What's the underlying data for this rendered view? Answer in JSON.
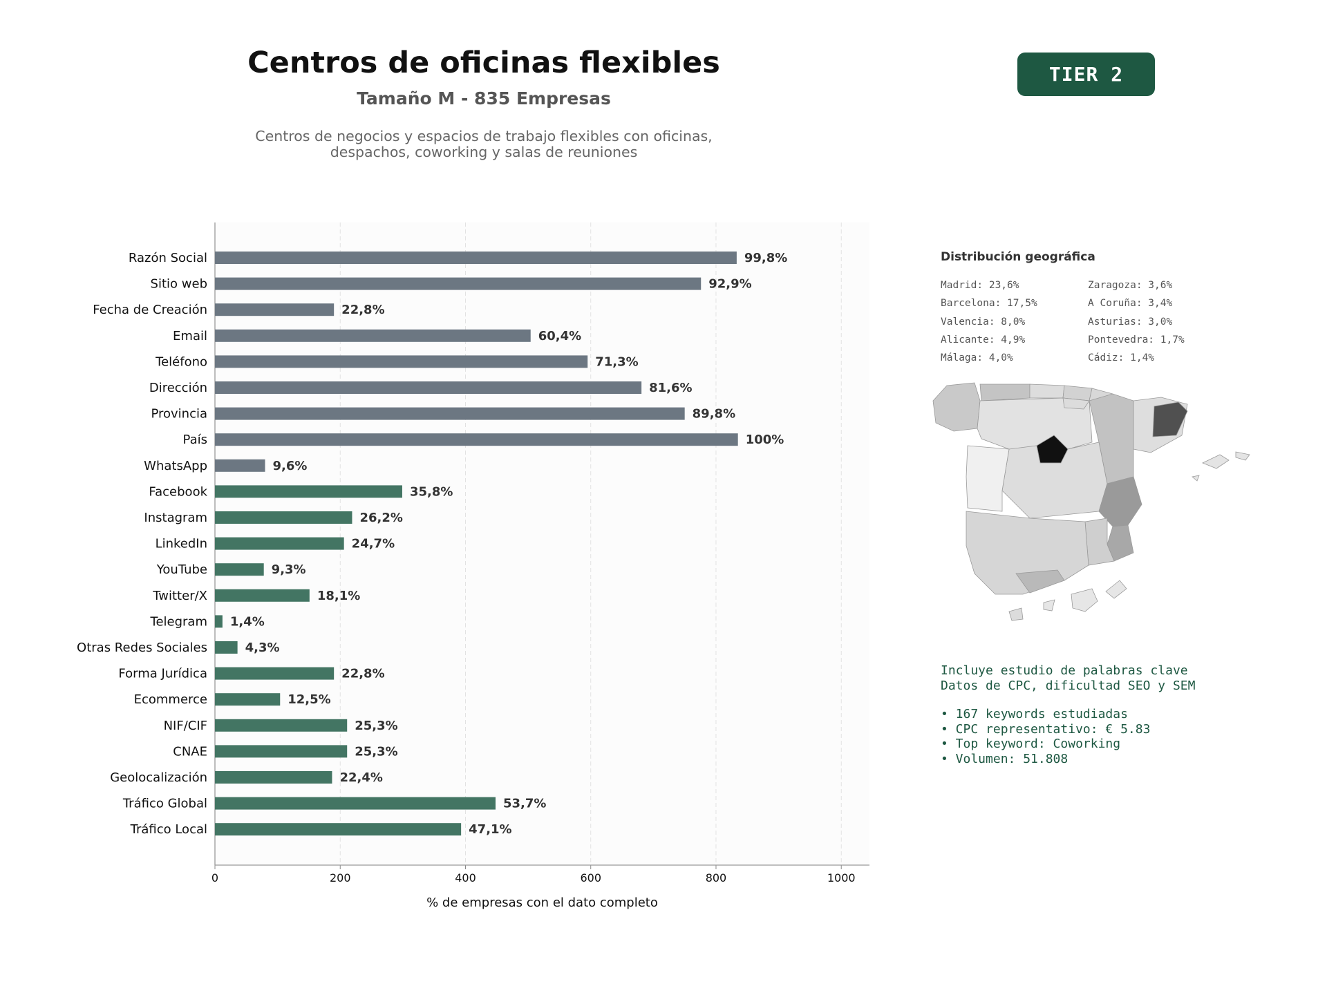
{
  "header": {
    "title": "Centros de oficinas flexibles",
    "subtitle": "Tamaño M - 835 Empresas",
    "description_line1": "Centros de negocios y espacios de trabajo flexibles con oficinas,",
    "description_line2": "despachos, coworking y salas de reuniones",
    "badge": "TIER 2"
  },
  "colors": {
    "gray_bar": "#6c7782",
    "green_bar": "#437563",
    "badge": "#1e5842",
    "accent_text": "#1e5842"
  },
  "chart_data": {
    "type": "bar",
    "orientation": "horizontal",
    "xlabel": "% de empresas con el dato completo",
    "ylabel": "",
    "xlim": [
      0,
      1045
    ],
    "xticks": [
      0,
      200,
      400,
      600,
      800,
      1000
    ],
    "grid": "vertical dashed",
    "categories": [
      "Razón Social",
      "Sitio web",
      "Fecha de Creación",
      "Email",
      "Teléfono",
      "Dirección",
      "Provincia",
      "País",
      "WhatsApp",
      "Facebook",
      "Instagram",
      "LinkedIn",
      "YouTube",
      "Twitter/X",
      "Telegram",
      "Otras Redes Sociales",
      "Forma Jurídica",
      "Ecommerce",
      "NIF/CIF",
      "CNAE",
      "Geolocalización",
      "Tráfico Global",
      "Tráfico Local"
    ],
    "values": [
      833,
      776,
      190,
      504,
      595,
      681,
      750,
      835,
      80,
      299,
      219,
      206,
      78,
      151,
      12,
      36,
      190,
      104,
      211,
      211,
      187,
      448,
      393
    ],
    "labels": [
      "99,8%",
      "92,9%",
      "22,8%",
      "60,4%",
      "71,3%",
      "81,6%",
      "89,8%",
      "100%",
      "9,6%",
      "35,8%",
      "26,2%",
      "24,7%",
      "9,3%",
      "18,1%",
      "1,4%",
      "4,3%",
      "22,8%",
      "12,5%",
      "25,3%",
      "25,3%",
      "22,4%",
      "53,7%",
      "47,1%"
    ],
    "bar_colors": [
      "gray",
      "gray",
      "gray",
      "gray",
      "gray",
      "gray",
      "gray",
      "gray",
      "gray",
      "green",
      "green",
      "green",
      "green",
      "green",
      "green",
      "green",
      "green",
      "green",
      "green",
      "green",
      "green",
      "green",
      "green"
    ]
  },
  "geo": {
    "title": "Distribución geográfica",
    "col1": [
      "Madrid: 23,6%",
      "Barcelona: 17,5%",
      "Valencia: 8,0%",
      "Alicante: 4,9%",
      "Málaga: 4,0%"
    ],
    "col2": [
      "Zaragoza: 3,6%",
      "A Coruña: 3,4%",
      "Asturias: 3,0%",
      "Pontevedra: 1,7%",
      "Cádiz: 1,4%"
    ]
  },
  "keywords": {
    "line1": "Incluye estudio de palabras clave",
    "line2": "Datos de CPC, dificultad SEO y SEM",
    "bullets": [
      "• 167 keywords estudiadas",
      "• CPC representativo: € 5.83",
      "• Top keyword: Coworking",
      "• Volumen: 51.808"
    ]
  }
}
